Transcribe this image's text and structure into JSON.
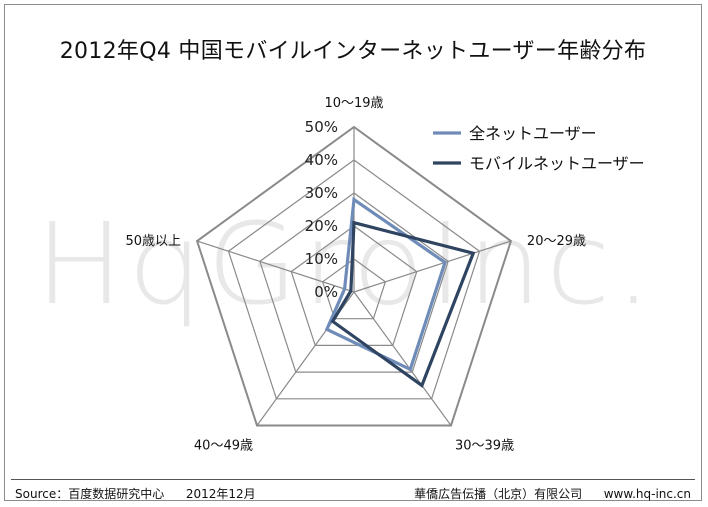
{
  "header": {
    "title": "2012年Q4 中国モバイルインターネットユーザー年齢分布"
  },
  "watermark": "HqGroInc.",
  "chart_data": {
    "type": "radar",
    "categories": [
      "10〜19歳",
      "20〜29歳",
      "30〜39歳",
      "40〜49歳",
      "50歳以上"
    ],
    "rlim": [
      0,
      50
    ],
    "ticks": [
      "0%",
      "10%",
      "20%",
      "30%",
      "40%",
      "50%"
    ],
    "grid": true,
    "legend_position": "top-right",
    "series": [
      {
        "name": "全ネットユーザー",
        "values": [
          28,
          29,
          29,
          14,
          3
        ],
        "color": "#6f8cb8"
      },
      {
        "name": "モバイルネットユーザー",
        "values": [
          21,
          38,
          35,
          11,
          1
        ],
        "color": "#2e4461"
      }
    ]
  },
  "footer": {
    "source_label": "Source：百度数据研究中心",
    "source_date": "2012年12月",
    "company": "華僑広告伝播（北京）有限公司",
    "website": "www.hq-inc.cn"
  }
}
